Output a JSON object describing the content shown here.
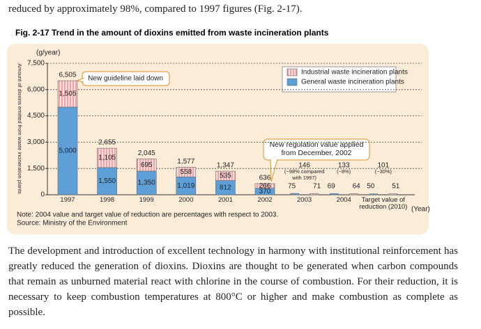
{
  "intro": "reduced by approximately 98%, compared to 1997 figures (Fig. 2-17).",
  "figure_title": "Fig. 2-17 Trend in the amount of dioxins emitted from waste incineration plants",
  "chart_data": {
    "type": "bar",
    "y_unit": "(g/year)",
    "y_label": "Amount of dioxins emitted from waste incineration plants",
    "x_label": "(Year)",
    "categories": [
      "1997",
      "1998",
      "1999",
      "2000",
      "2001",
      "2002",
      "2003",
      "2004",
      "Target value of reduction (2010)"
    ],
    "stacked": [
      true,
      true,
      true,
      true,
      true,
      true,
      false,
      false,
      false
    ],
    "series": [
      {
        "name": "General waste incineration plants",
        "color": "#5f9fd8",
        "values": [
          5000,
          1550,
          1350,
          1019,
          812,
          370,
          75,
          69,
          50
        ],
        "value_labels": [
          "5,000",
          "1,550",
          "1,350",
          "1,019",
          "812",
          "370",
          "75",
          "69",
          "50"
        ]
      },
      {
        "name": "Industrial waste incineration plants",
        "color": "#f6c4c4",
        "values": [
          1505,
          1105,
          695,
          558,
          535,
          266,
          71,
          64,
          51
        ],
        "value_labels": [
          "1,505",
          "1,105",
          "695",
          "558",
          "535",
          "266",
          "71",
          "64",
          "51"
        ]
      }
    ],
    "totals": [
      6505,
      2655,
      2045,
      1577,
      1347,
      636,
      146,
      133,
      101
    ],
    "total_labels": [
      "6,505",
      "2,655",
      "2,045",
      "1,577",
      "1,347",
      "636",
      "146",
      "133",
      "101"
    ],
    "change_labels": [
      null,
      null,
      null,
      null,
      null,
      null,
      "(−98% compared with 1997)",
      "(−8%)",
      "(−30%)"
    ],
    "annotations": [
      "New guideline laid down",
      "New regulation value applied from December, 2002"
    ],
    "ylim": [
      0,
      7500
    ],
    "yticks": [
      0,
      {
        "value": 1500,
        "label": "1,500"
      },
      {
        "value": 3000,
        "label": "3,000"
      },
      {
        "value": 4500,
        "label": "4,500"
      },
      {
        "value": 6000,
        "label": "6,000"
      },
      {
        "value": 7500,
        "label": "7,500"
      }
    ],
    "grid": true,
    "legend_position": "top-right"
  },
  "note": "Note: 2004 value and target value of reduction are percentages with respect to 2003.",
  "source": "Source: Ministry of the Environment",
  "paragraph": "The development and introduction of excellent technology in harmony with institutional reinforcement has greatly reduced the generation of dioxins. Dioxins are thought to be generated when carbon compounds that remain as unburned material react with chlorine in the course of combustion. For their reduction, it is necessary to keep combustion temperatures at 800°C or higher and make combustion as complete as possible."
}
